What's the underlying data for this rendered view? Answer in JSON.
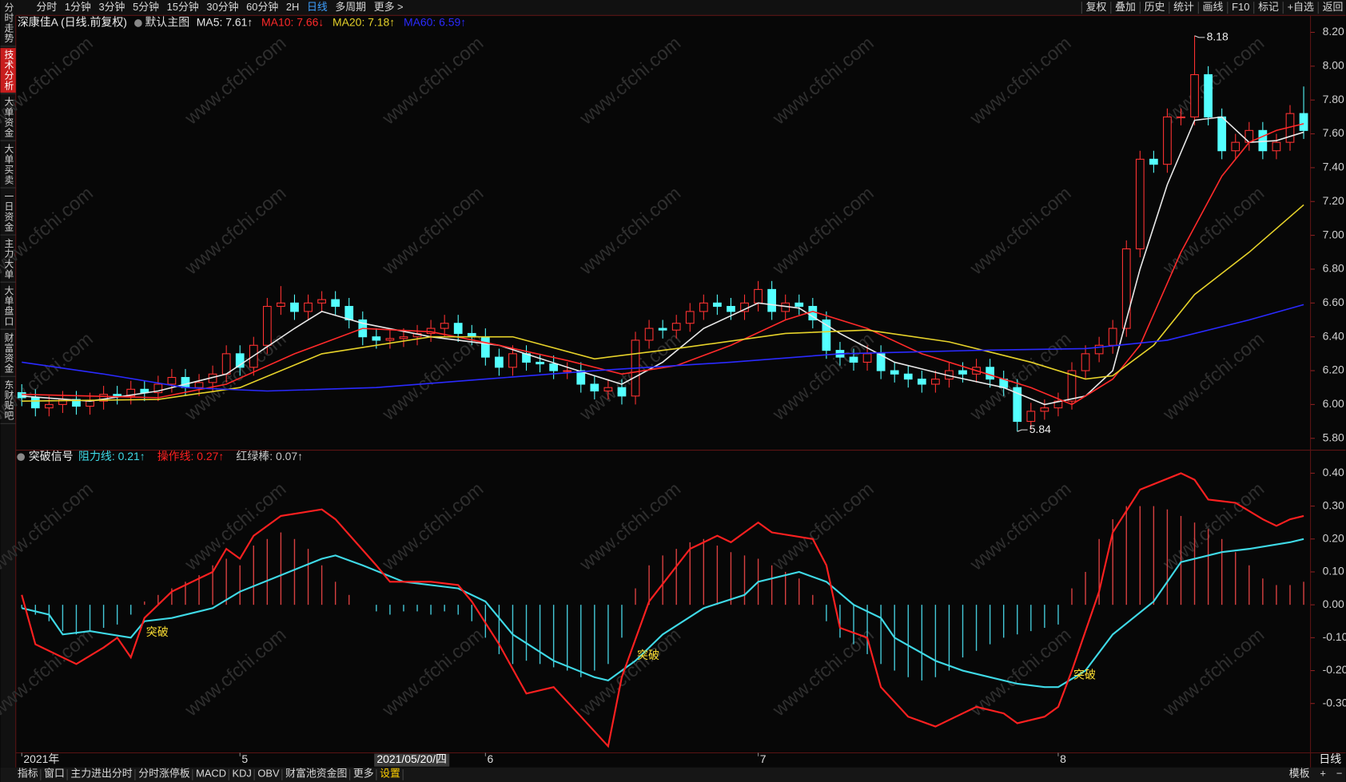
{
  "toolbar": {
    "periods": [
      "分时",
      "1分钟",
      "3分钟",
      "5分钟",
      "15分钟",
      "30分钟",
      "60分钟",
      "2H",
      "日线",
      "多周期",
      "更多 >"
    ],
    "active_index": 8,
    "tools": [
      "复权",
      "叠加",
      "历史",
      "统计",
      "画线",
      "F10",
      "标记",
      "+自选",
      "返回"
    ]
  },
  "sidebar": {
    "tabs": [
      "分时走势",
      "技术分析",
      "大单资金",
      "大单买卖",
      "一日资金",
      "主力大单",
      "大单盘口",
      "财富资金",
      "东财贴吧"
    ],
    "active_index": 1
  },
  "watermark": "www.cfchi.com",
  "chart_data": [
    {
      "type": "candlestick",
      "title": "深康佳A (日线.前复权)",
      "subtitle": "默认主图",
      "up_color": "#ff3232",
      "down_color": "#54ffff",
      "xlim": [
        -0.44,
        94.5
      ],
      "ylim": [
        5.73,
        8.3
      ],
      "yticks": [
        {
          "value": 8.2,
          "label": "8.20"
        },
        {
          "value": 8.0,
          "label": "8.00"
        },
        {
          "value": 7.8,
          "label": "7.80"
        },
        {
          "value": 7.6,
          "label": "7.60"
        },
        {
          "value": 7.4,
          "label": "7.40"
        },
        {
          "value": 7.2,
          "label": "7.20"
        },
        {
          "value": 7.0,
          "label": "7.00"
        },
        {
          "value": 6.8,
          "label": "6.80"
        },
        {
          "value": 6.6,
          "label": "6.60"
        },
        {
          "value": 6.4,
          "label": "6.40"
        },
        {
          "value": 6.2,
          "label": "6.20"
        },
        {
          "value": 6.0,
          "label": "6.00"
        },
        {
          "value": 5.8,
          "label": "5.80"
        }
      ],
      "open": [
        6.07,
        6.04,
        5.98,
        6.0,
        6.03,
        5.99,
        6.02,
        6.06,
        6.05,
        6.09,
        6.07,
        6.12,
        6.16,
        6.1,
        6.13,
        6.18,
        6.3,
        6.22,
        6.35,
        6.58,
        6.6,
        6.55,
        6.6,
        6.62,
        6.58,
        6.5,
        6.4,
        6.38,
        6.39,
        6.4,
        6.42,
        6.45,
        6.48,
        6.42,
        6.4,
        6.28,
        6.22,
        6.3,
        6.25,
        6.24,
        6.2,
        6.2,
        6.12,
        6.08,
        6.1,
        6.05,
        6.38,
        6.45,
        6.44,
        6.48,
        6.55,
        6.6,
        6.58,
        6.55,
        6.6,
        6.68,
        6.55,
        6.6,
        6.58,
        6.5,
        6.32,
        6.28,
        6.25,
        6.3,
        6.2,
        6.18,
        6.15,
        6.12,
        6.15,
        6.2,
        6.18,
        6.22,
        6.15,
        6.1,
        5.9,
        5.96,
        5.98,
        6.02,
        6.2,
        6.3,
        6.35,
        6.45,
        6.92,
        7.45,
        7.42,
        7.7,
        7.7,
        7.95,
        7.7,
        7.5,
        7.55,
        7.62,
        7.5,
        7.55,
        7.72
      ],
      "close": [
        6.04,
        5.98,
        6.0,
        6.03,
        5.99,
        6.02,
        6.06,
        6.05,
        6.09,
        6.07,
        6.12,
        6.16,
        6.1,
        6.13,
        6.18,
        6.3,
        6.22,
        6.35,
        6.58,
        6.6,
        6.55,
        6.6,
        6.62,
        6.58,
        6.5,
        6.4,
        6.38,
        6.39,
        6.4,
        6.42,
        6.45,
        6.48,
        6.42,
        6.4,
        6.28,
        6.22,
        6.3,
        6.25,
        6.24,
        6.2,
        6.2,
        6.12,
        6.08,
        6.1,
        6.05,
        6.38,
        6.45,
        6.44,
        6.48,
        6.55,
        6.6,
        6.58,
        6.55,
        6.6,
        6.68,
        6.55,
        6.6,
        6.58,
        6.5,
        6.32,
        6.28,
        6.25,
        6.3,
        6.2,
        6.18,
        6.15,
        6.12,
        6.15,
        6.2,
        6.18,
        6.22,
        6.15,
        6.1,
        5.9,
        5.96,
        5.98,
        6.02,
        6.2,
        6.3,
        6.35,
        6.45,
        6.92,
        7.45,
        7.42,
        7.7,
        7.7,
        7.95,
        7.7,
        7.5,
        7.55,
        7.62,
        7.5,
        7.55,
        7.72,
        7.62
      ],
      "high": [
        6.12,
        6.09,
        6.05,
        6.08,
        6.08,
        6.07,
        6.11,
        6.11,
        6.14,
        6.14,
        6.17,
        6.21,
        6.21,
        6.18,
        6.23,
        6.35,
        6.35,
        6.4,
        6.63,
        6.7,
        6.65,
        6.65,
        6.67,
        6.67,
        6.63,
        6.55,
        6.45,
        6.44,
        6.45,
        6.47,
        6.5,
        6.53,
        6.53,
        6.47,
        6.45,
        6.33,
        6.35,
        6.35,
        6.3,
        6.29,
        6.25,
        6.25,
        6.17,
        6.15,
        6.15,
        6.43,
        6.5,
        6.5,
        6.53,
        6.6,
        6.65,
        6.65,
        6.63,
        6.65,
        6.73,
        6.73,
        6.65,
        6.65,
        6.63,
        6.55,
        6.37,
        6.33,
        6.35,
        6.35,
        6.25,
        6.23,
        6.2,
        6.2,
        6.25,
        6.25,
        6.27,
        6.27,
        6.2,
        6.15,
        6.01,
        6.03,
        6.07,
        6.25,
        6.35,
        6.4,
        6.5,
        6.97,
        7.5,
        7.5,
        7.75,
        7.75,
        8.18,
        8.0,
        7.75,
        7.6,
        7.67,
        7.67,
        7.6,
        7.77,
        7.88
      ],
      "low": [
        5.99,
        5.93,
        5.93,
        5.95,
        5.94,
        5.94,
        5.97,
        6.0,
        6.0,
        6.02,
        6.02,
        6.07,
        6.05,
        6.05,
        6.08,
        6.13,
        6.17,
        6.17,
        6.3,
        6.53,
        6.5,
        6.5,
        6.55,
        6.53,
        6.45,
        6.35,
        6.33,
        6.33,
        6.34,
        6.35,
        6.37,
        6.4,
        6.37,
        6.35,
        6.23,
        6.17,
        6.17,
        6.2,
        6.19,
        6.15,
        6.15,
        6.07,
        6.03,
        6.03,
        6.0,
        6.0,
        6.33,
        6.39,
        6.39,
        6.43,
        6.5,
        6.53,
        6.5,
        6.5,
        6.55,
        6.5,
        6.5,
        6.53,
        6.45,
        6.27,
        6.23,
        6.2,
        6.2,
        6.15,
        6.13,
        6.1,
        6.07,
        6.07,
        6.1,
        6.13,
        6.13,
        6.1,
        6.05,
        5.84,
        5.85,
        5.91,
        5.93,
        5.97,
        6.15,
        6.25,
        6.3,
        6.4,
        6.87,
        7.37,
        7.37,
        7.65,
        7.65,
        7.65,
        7.45,
        7.45,
        7.5,
        7.45,
        7.45,
        7.5,
        7.57
      ],
      "lines": [
        {
          "name": "MA5: 7.61↑",
          "color": "#e8e8e8",
          "x": [
            0,
            5,
            10,
            15,
            20,
            22,
            25,
            30,
            35,
            40,
            44,
            47,
            50,
            54,
            57,
            60,
            64,
            68,
            72,
            75,
            78,
            80,
            82,
            84,
            86,
            88,
            90,
            92,
            94
          ],
          "values": [
            6.05,
            6.02,
            6.08,
            6.18,
            6.45,
            6.55,
            6.48,
            6.4,
            6.35,
            6.22,
            6.12,
            6.25,
            6.45,
            6.6,
            6.57,
            6.42,
            6.25,
            6.17,
            6.1,
            6.0,
            6.05,
            6.2,
            6.8,
            7.3,
            7.68,
            7.7,
            7.55,
            7.56,
            7.61
          ]
        },
        {
          "name": "MA10: 7.66↓",
          "color": "#ff2a2a",
          "x": [
            0,
            5,
            10,
            15,
            20,
            25,
            30,
            35,
            40,
            44,
            48,
            52,
            56,
            58,
            62,
            66,
            70,
            74,
            77,
            80,
            82,
            85,
            88,
            90,
            92,
            94
          ],
          "values": [
            6.06,
            6.05,
            6.04,
            6.12,
            6.3,
            6.45,
            6.43,
            6.35,
            6.26,
            6.18,
            6.23,
            6.35,
            6.5,
            6.55,
            6.45,
            6.3,
            6.2,
            6.1,
            6.0,
            6.15,
            6.35,
            6.9,
            7.35,
            7.55,
            7.62,
            7.66
          ]
        },
        {
          "name": "MA20: 7.18↑",
          "color": "#e6d22a",
          "x": [
            0,
            10,
            16,
            22,
            30,
            36,
            42,
            48,
            56,
            62,
            68,
            74,
            78,
            80,
            83,
            86,
            90,
            94
          ],
          "values": [
            6.02,
            6.03,
            6.1,
            6.3,
            6.4,
            6.4,
            6.27,
            6.33,
            6.42,
            6.44,
            6.37,
            6.25,
            6.15,
            6.17,
            6.35,
            6.65,
            6.9,
            7.18
          ]
        },
        {
          "name": "MA60: 6.59↑",
          "color": "#2a2aff",
          "x": [
            0,
            6,
            12,
            18,
            26,
            34,
            42,
            52,
            60,
            70,
            78,
            84,
            90,
            94
          ],
          "values": [
            6.25,
            6.18,
            6.1,
            6.08,
            6.1,
            6.15,
            6.2,
            6.25,
            6.3,
            6.32,
            6.33,
            6.38,
            6.5,
            6.59
          ]
        }
      ],
      "annotations": [
        {
          "x": 86,
          "value": 8.18
        },
        {
          "x": 73,
          "value": 5.84
        }
      ]
    },
    {
      "type": "indicator",
      "title": "突破信号",
      "xlim": [
        -0.44,
        94.5
      ],
      "ylim": [
        -0.45,
        0.47
      ],
      "yticks": [
        {
          "value": 0.4,
          "label": "0.40"
        },
        {
          "value": 0.3,
          "label": "0.30"
        },
        {
          "value": 0.2,
          "label": "0.20"
        },
        {
          "value": 0.1,
          "label": "0.10"
        },
        {
          "value": 0,
          "label": "0.00"
        },
        {
          "value": -0.1,
          "label": "-0.10"
        },
        {
          "value": -0.2,
          "label": "-0.20"
        },
        {
          "value": -0.3,
          "label": "-0.30"
        }
      ],
      "xticks": [
        {
          "value": 0,
          "label": "2021年"
        },
        {
          "value": 16,
          "label": "5"
        },
        {
          "value": 34,
          "label": "6"
        },
        {
          "value": 54,
          "label": "7"
        },
        {
          "value": 76,
          "label": "8"
        }
      ],
      "cursor": {
        "x": 28.6,
        "label": "2021/05/20/四"
      },
      "period_label": "日线",
      "series": [
        {
          "name": "阻力线: 0.21↑",
          "color": "#3fd9e6",
          "x": [
            0,
            2,
            3,
            5,
            8,
            9,
            11,
            14,
            16,
            19,
            22,
            23,
            25,
            28,
            32,
            34,
            36,
            39,
            42,
            43,
            45,
            47,
            50,
            53,
            54,
            56,
            57,
            59,
            61,
            63,
            64,
            67,
            69,
            71,
            73,
            75,
            76,
            78,
            80,
            83,
            85,
            88,
            90,
            93,
            94
          ],
          "values": [
            -0.01,
            -0.03,
            -0.09,
            -0.08,
            -0.1,
            -0.05,
            -0.04,
            -0.01,
            0.04,
            0.09,
            0.14,
            0.15,
            0.12,
            0.07,
            0.05,
            0.01,
            -0.09,
            -0.17,
            -0.22,
            -0.23,
            -0.17,
            -0.09,
            -0.01,
            0.03,
            0.07,
            0.09,
            0.1,
            0.07,
            0.0,
            -0.04,
            -0.1,
            -0.17,
            -0.2,
            -0.22,
            -0.24,
            -0.25,
            -0.25,
            -0.2,
            -0.09,
            0.01,
            0.13,
            0.16,
            0.17,
            0.19,
            0.2
          ]
        },
        {
          "name": "操作线: 0.27↑",
          "color": "#ff2020",
          "x": [
            0,
            1,
            4,
            6,
            7,
            8,
            9,
            11,
            14,
            15,
            16,
            17,
            19,
            22,
            23,
            26,
            27,
            30,
            32,
            33,
            35,
            37,
            39,
            41,
            43,
            44,
            46,
            49,
            51,
            52,
            54,
            55,
            58,
            59,
            60,
            62,
            63,
            65,
            67,
            68,
            70,
            72,
            73,
            75,
            76,
            77,
            79,
            80,
            82,
            85,
            86,
            87,
            89,
            91,
            92,
            93,
            94
          ],
          "values": [
            0.03,
            -0.12,
            -0.18,
            -0.13,
            -0.1,
            -0.16,
            -0.04,
            0.04,
            0.1,
            0.17,
            0.14,
            0.21,
            0.27,
            0.29,
            0.26,
            0.12,
            0.07,
            0.07,
            0.06,
            0.01,
            -0.12,
            -0.27,
            -0.25,
            -0.34,
            -0.43,
            -0.22,
            0.01,
            0.17,
            0.21,
            0.19,
            0.25,
            0.22,
            0.2,
            0.12,
            -0.07,
            -0.1,
            -0.25,
            -0.34,
            -0.37,
            -0.35,
            -0.31,
            -0.33,
            -0.36,
            -0.34,
            -0.31,
            -0.2,
            0.04,
            0.22,
            0.35,
            0.4,
            0.38,
            0.32,
            0.31,
            0.26,
            0.24,
            0.26,
            0.27
          ]
        },
        {
          "name": "红绿棒: 0.07↑",
          "type": "bar",
          "color": "#c8c8c8",
          "pos_color": "#d84040",
          "neg_color": "#44c8d8",
          "values": [
            -0.01,
            -0.03,
            -0.05,
            -0.08,
            -0.09,
            -0.08,
            -0.07,
            -0.06,
            -0.03,
            0.01,
            0.03,
            0.05,
            0.07,
            0.09,
            0.12,
            0.14,
            0.12,
            0.18,
            0.2,
            0.22,
            0.2,
            0.17,
            0.12,
            0.07,
            0.03,
            0.0,
            -0.02,
            -0.03,
            -0.02,
            -0.02,
            -0.03,
            -0.02,
            -0.03,
            -0.05,
            -0.1,
            -0.15,
            -0.18,
            -0.17,
            -0.18,
            -0.19,
            -0.2,
            -0.22,
            -0.2,
            -0.18,
            -0.1,
            0.05,
            0.12,
            0.15,
            0.17,
            0.19,
            0.2,
            0.18,
            0.16,
            0.15,
            0.14,
            0.12,
            0.1,
            0.08,
            0.03,
            -0.05,
            -0.1,
            -0.12,
            -0.15,
            -0.18,
            -0.2,
            -0.22,
            -0.23,
            -0.22,
            -0.2,
            -0.16,
            -0.14,
            -0.12,
            -0.1,
            -0.09,
            -0.08,
            -0.07,
            -0.06,
            0.05,
            0.1,
            0.2,
            0.26,
            0.3,
            0.3,
            0.3,
            0.29,
            0.27,
            0.25,
            0.23,
            0.2,
            0.16,
            0.12,
            0.08,
            0.06,
            0.06,
            0.07
          ]
        }
      ],
      "annotations": [
        {
          "text": "突破",
          "x": 10,
          "y": -0.08
        },
        {
          "text": "突破",
          "x": 46,
          "y": -0.15
        },
        {
          "text": "突破",
          "x": 78,
          "y": -0.21
        }
      ]
    }
  ],
  "bottom_tabs": {
    "items": [
      "指标",
      "窗口",
      "主力进出分时",
      "分时涨停板",
      "MACD",
      "KDJ",
      "OBV",
      "财富池资金图",
      "更多",
      "设置"
    ],
    "active_index": 9,
    "right": [
      "模板",
      "+",
      "−"
    ]
  }
}
